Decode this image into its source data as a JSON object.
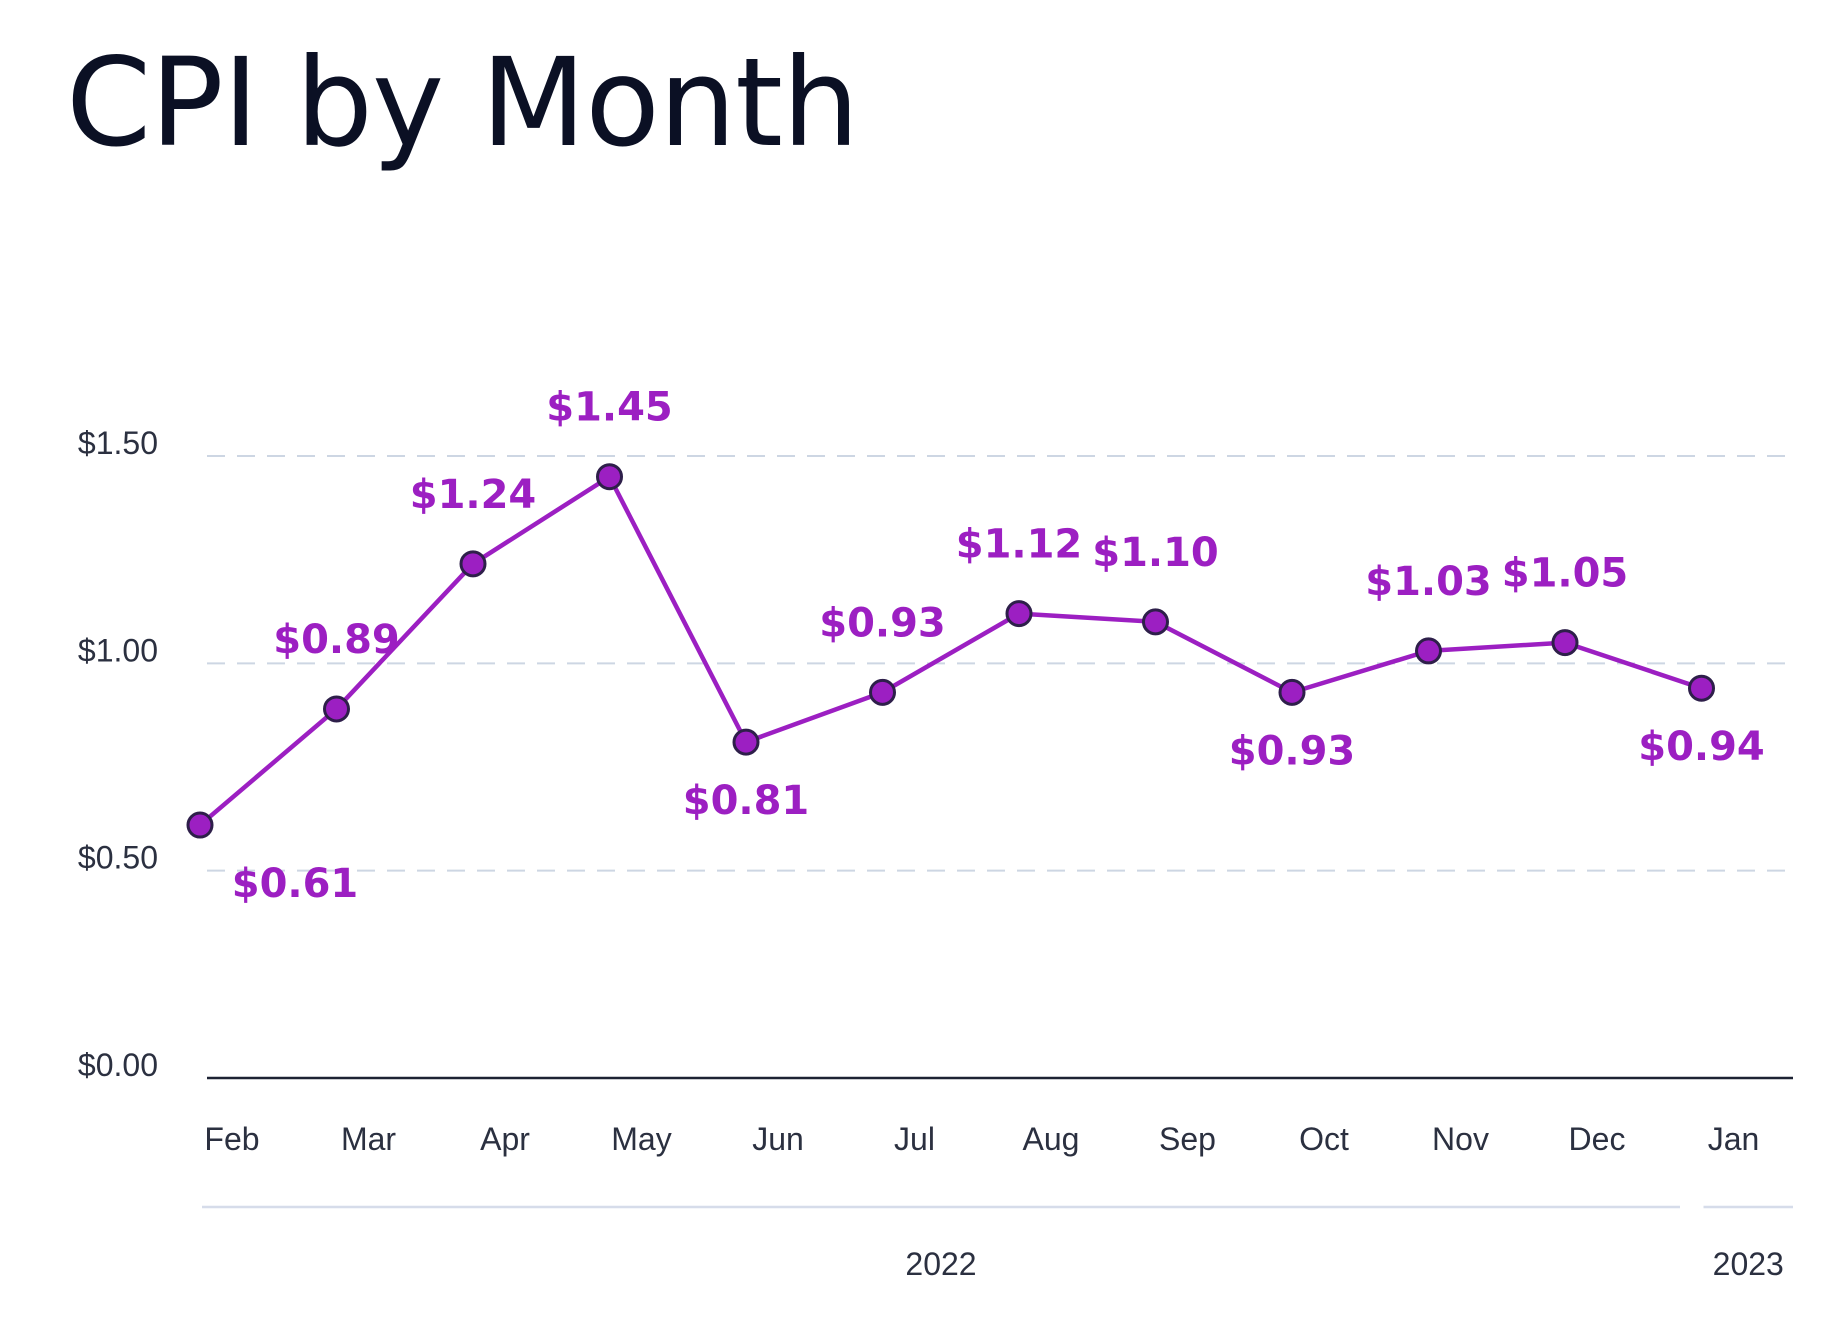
{
  "colors": {
    "series": "#9c1fc2",
    "marker_stroke": "#2e1f4a",
    "grid": "#cdd6e3",
    "axis": "#1d2233",
    "year_rule": "#d6dcea",
    "title": "#0b1024",
    "tick_text": "#2b3040"
  },
  "chart_data": {
    "type": "line",
    "title": "CPI by Month",
    "xlabel": "",
    "ylabel": "",
    "categories": [
      "Feb",
      "Mar",
      "Apr",
      "May",
      "Jun",
      "Jul",
      "Aug",
      "Sep",
      "Oct",
      "Nov",
      "Dec",
      "Jan"
    ],
    "series": [
      {
        "values": [
          0.61,
          0.89,
          1.24,
          1.45,
          0.81,
          0.93,
          1.12,
          1.1,
          0.93,
          1.03,
          1.05,
          0.94
        ],
        "labels": [
          "$0.61",
          "$0.89",
          "$1.24",
          "$1.45",
          "$0.81",
          "$0.93",
          "$1.12",
          "$1.10",
          "$0.93",
          "$1.03",
          "$1.05",
          "$0.94"
        ],
        "label_positions": [
          "below",
          "above",
          "above",
          "above",
          "below",
          "above",
          "above",
          "above",
          "below",
          "above",
          "above",
          "below"
        ]
      }
    ],
    "ylim": [
      0,
      1.5
    ],
    "yticks": [
      {
        "value": 0,
        "label": "$0.00"
      },
      {
        "value": 0.5,
        "label": "$0.50"
      },
      {
        "value": 1.0,
        "label": "$1.00"
      },
      {
        "value": 1.5,
        "label": "$1.50"
      }
    ],
    "year_groups": [
      {
        "label": "2022",
        "first": "Feb",
        "last": "Dec"
      },
      {
        "label": "2023",
        "first": "Jan",
        "last": "Jan"
      }
    ],
    "grid": true,
    "grid_style": "dashed",
    "legend": false
  }
}
